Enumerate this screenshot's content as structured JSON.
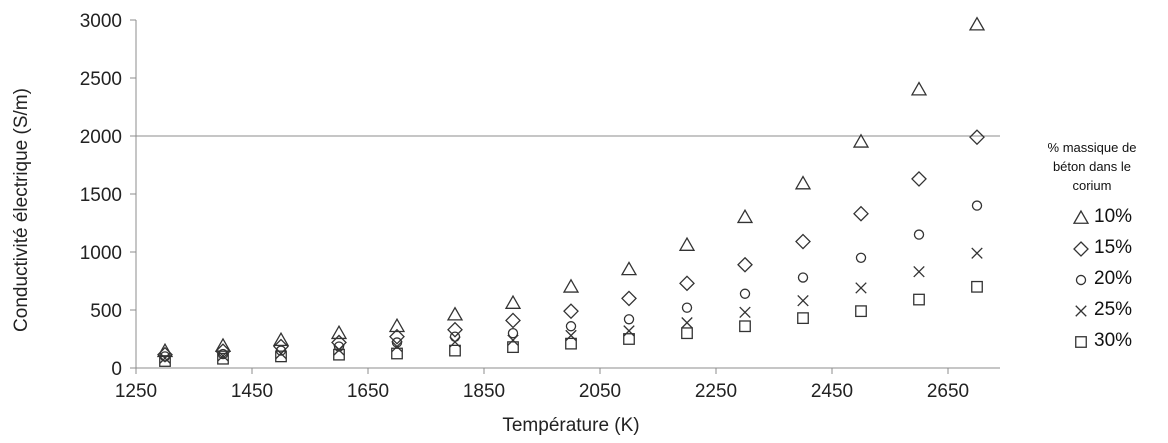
{
  "chart_data": {
    "type": "scatter",
    "title": "",
    "xlabel": "Température (K)",
    "ylabel": "Conductivité électrique  (S/m)",
    "xlim": [
      1250,
      2750
    ],
    "ylim": [
      0,
      3000
    ],
    "xticks": [
      1250,
      1450,
      1650,
      1850,
      2050,
      2250,
      2450,
      2650
    ],
    "yticks": [
      0,
      500,
      1000,
      1500,
      2000,
      2500,
      3000
    ],
    "grid": "horizontal line at 2000 only",
    "legend_title": "% massique de béton dans le corium",
    "legend_placement": "right",
    "x": [
      1300,
      1400,
      1500,
      1600,
      1700,
      1800,
      1900,
      2000,
      2100,
      2200,
      2300,
      2400,
      2500,
      2600,
      2700
    ],
    "series": [
      {
        "name": "10%",
        "marker": "triangle",
        "values": [
          145,
          190,
          240,
          300,
          360,
          460,
          560,
          700,
          850,
          1060,
          1300,
          1590,
          1950,
          2400,
          2960
        ]
      },
      {
        "name": "15%",
        "marker": "diamond",
        "values": [
          115,
          145,
          185,
          220,
          270,
          330,
          410,
          490,
          600,
          730,
          890,
          1090,
          1330,
          1630,
          1990
        ]
      },
      {
        "name": "20%",
        "marker": "circle",
        "values": [
          100,
          120,
          150,
          185,
          220,
          270,
          300,
          360,
          420,
          520,
          640,
          780,
          950,
          1150,
          1400
        ]
      },
      {
        "name": "25%",
        "marker": "x",
        "values": [
          85,
          105,
          125,
          155,
          185,
          225,
          240,
          280,
          320,
          390,
          480,
          580,
          690,
          830,
          990
        ]
      },
      {
        "name": "30%",
        "marker": "square",
        "values": [
          60,
          80,
          100,
          115,
          125,
          150,
          180,
          210,
          250,
          300,
          360,
          430,
          490,
          590,
          700
        ]
      }
    ]
  }
}
